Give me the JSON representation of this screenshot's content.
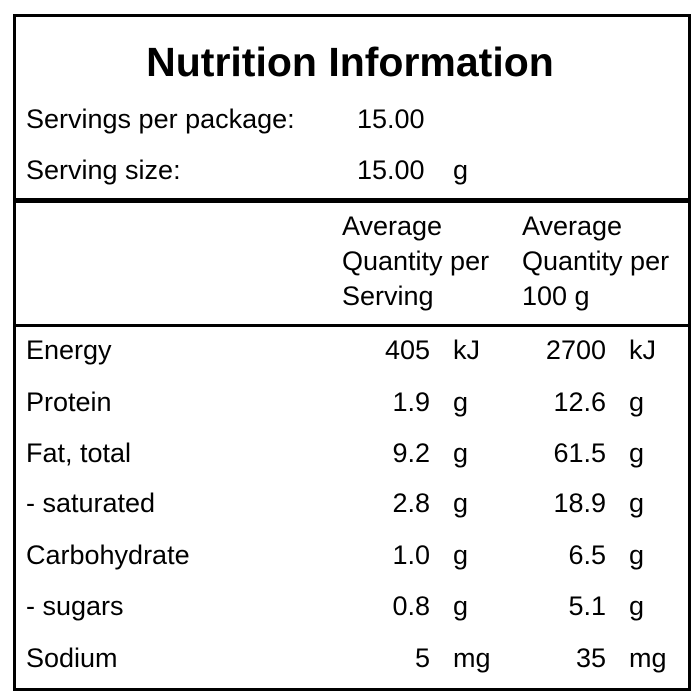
{
  "title": "Nutrition Information",
  "servings": {
    "per_package_label": "Servings per package:",
    "per_package_value": "15.00",
    "size_label": "Serving size:",
    "size_value": "15.00",
    "size_unit": "g"
  },
  "headers": {
    "per_serving": [
      "Average",
      "Quantity per",
      "Serving"
    ],
    "per_100g": [
      "Average",
      "Quantity per",
      "100 g"
    ]
  },
  "rows": [
    {
      "name": "Energy",
      "serving": "405",
      "serving_unit": "kJ",
      "per100": "2700",
      "per100_unit": "kJ"
    },
    {
      "name": "Protein",
      "serving": "1.9",
      "serving_unit": "g",
      "per100": "12.6",
      "per100_unit": "g"
    },
    {
      "name": "Fat, total",
      "serving": "9.2",
      "serving_unit": "g",
      "per100": "61.5",
      "per100_unit": "g"
    },
    {
      "name": "- saturated",
      "serving": "2.8",
      "serving_unit": "g",
      "per100": "18.9",
      "per100_unit": "g"
    },
    {
      "name": "Carbohydrate",
      "serving": "1.0",
      "serving_unit": "g",
      "per100": "6.5",
      "per100_unit": "g"
    },
    {
      "name": "- sugars",
      "serving": "0.8",
      "serving_unit": "g",
      "per100": "5.1",
      "per100_unit": "g"
    },
    {
      "name": "Sodium",
      "serving": "5",
      "serving_unit": "mg",
      "per100": "35",
      "per100_unit": "mg"
    }
  ]
}
